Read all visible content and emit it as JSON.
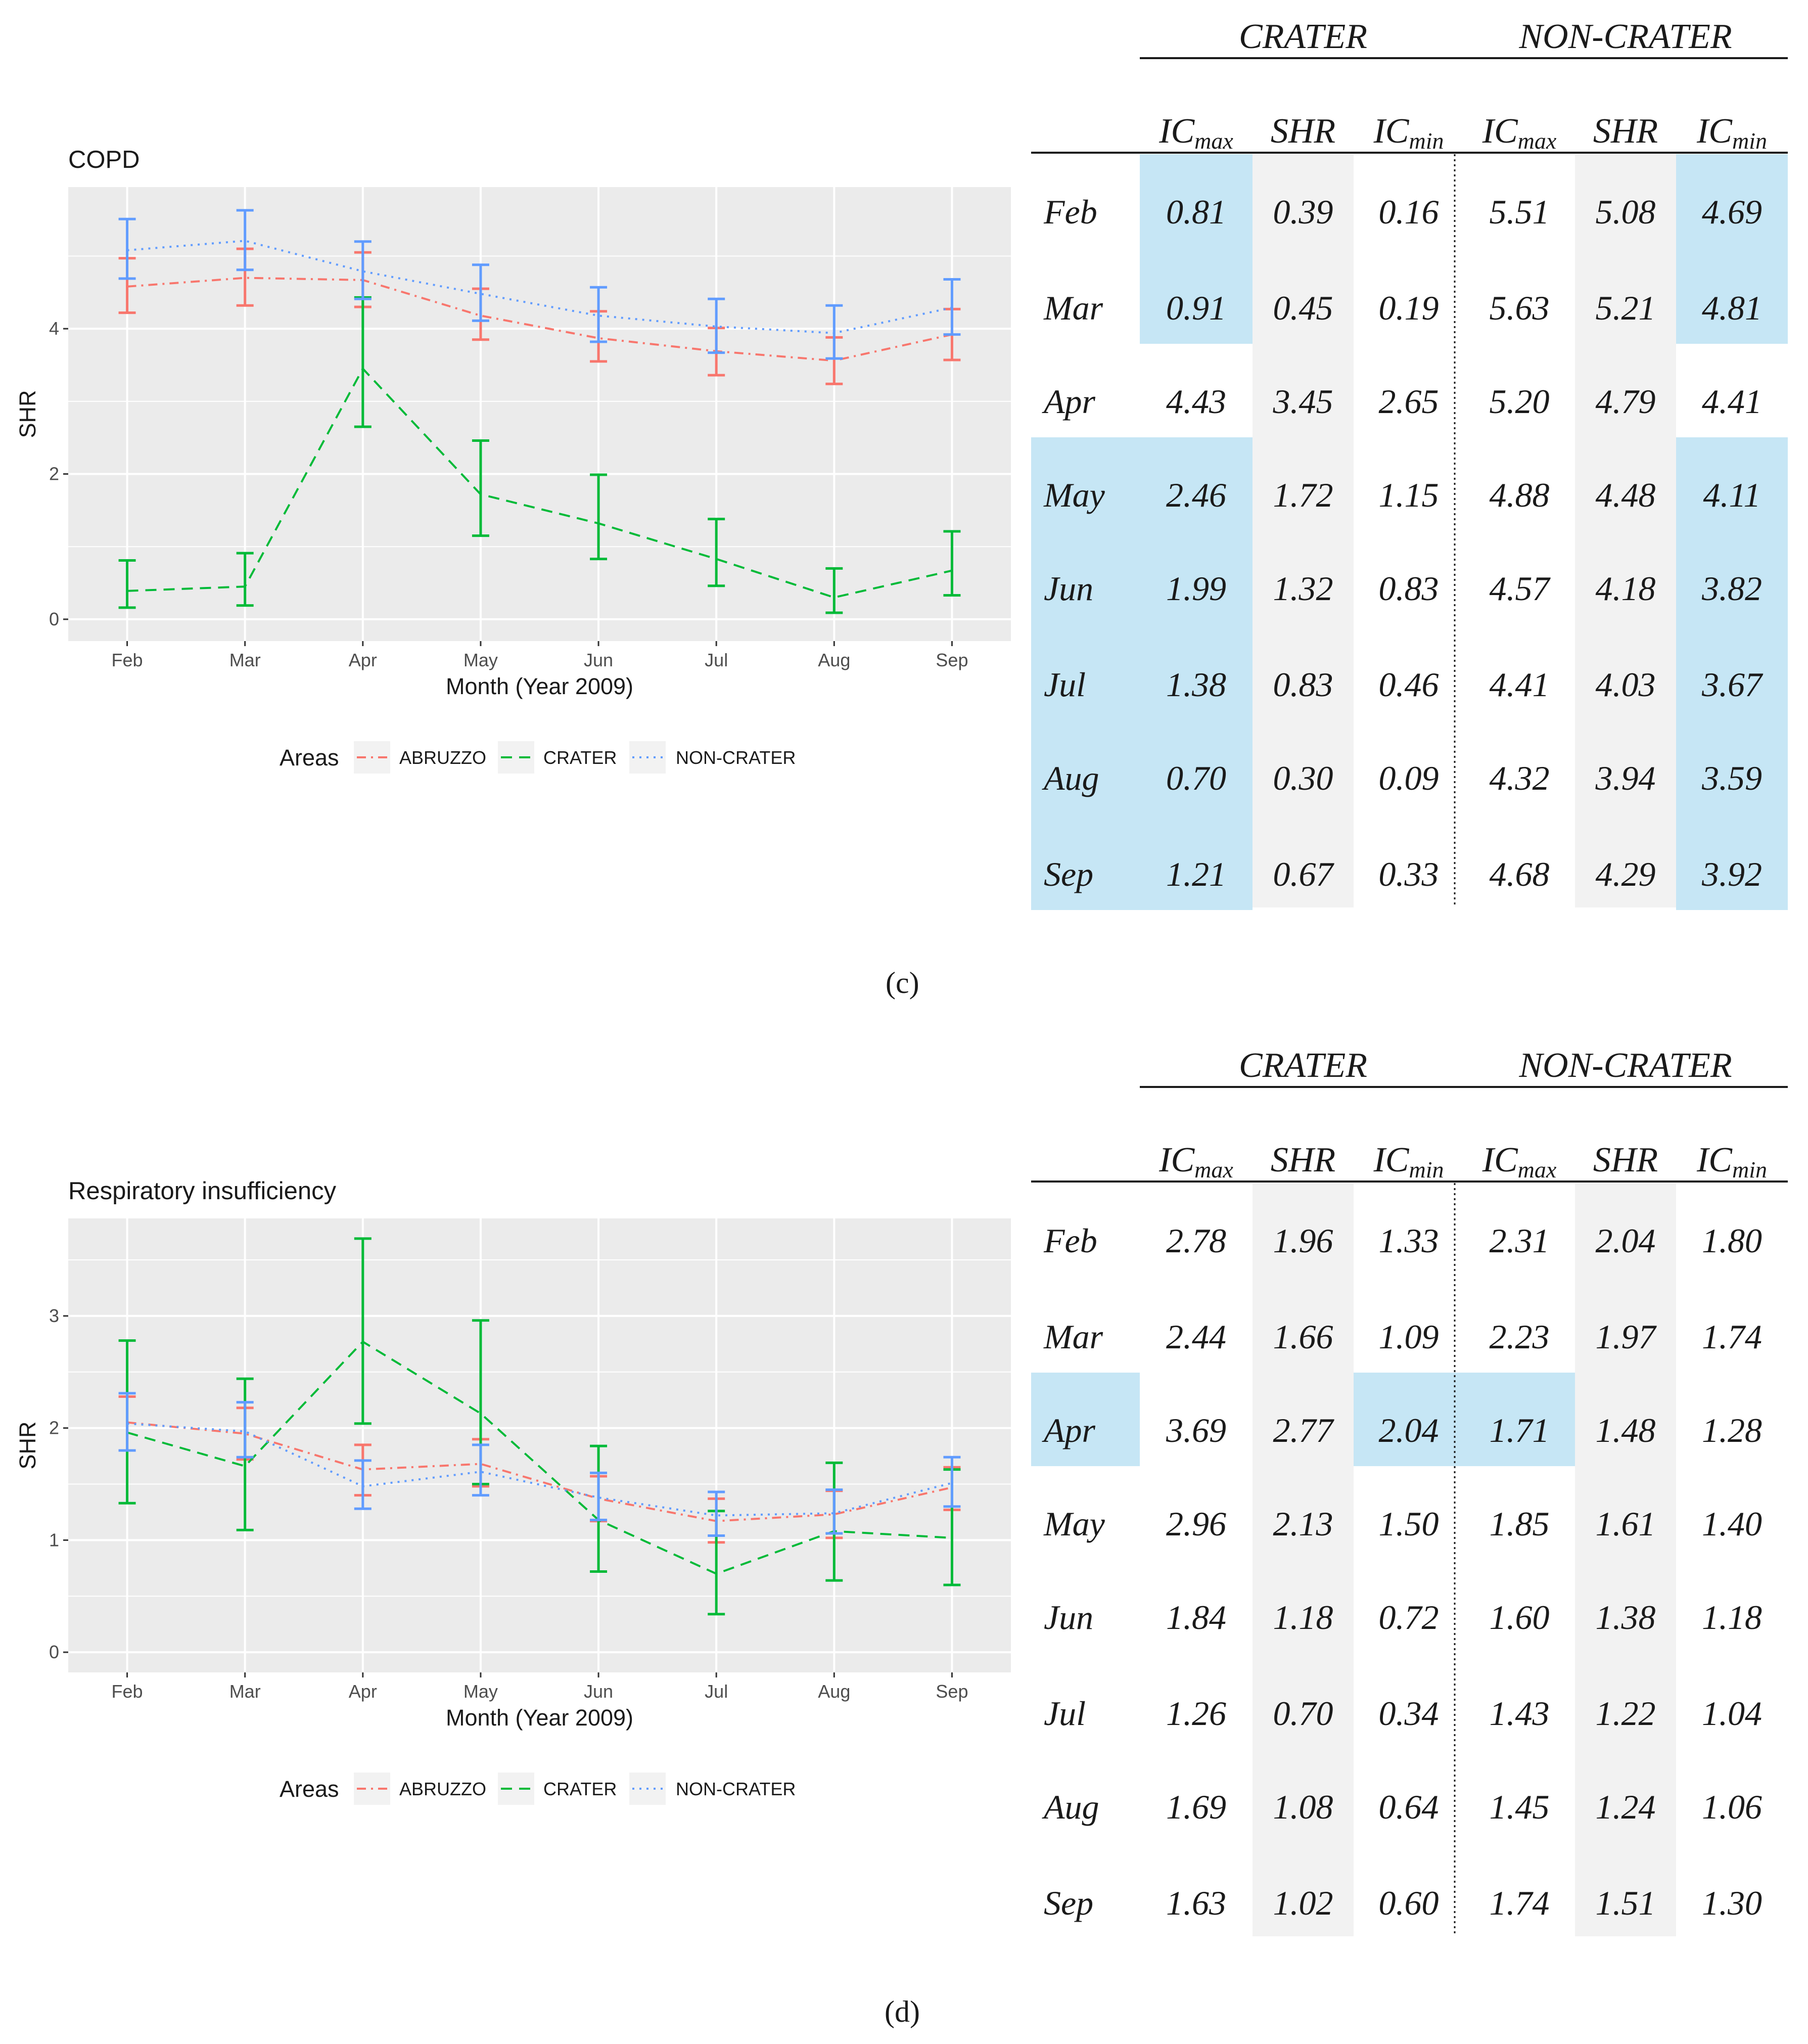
{
  "months": [
    "Feb",
    "Mar",
    "Apr",
    "May",
    "Jun",
    "Jul",
    "Aug",
    "Sep"
  ],
  "colors": {
    "abruzzo": "#f8766d",
    "crater": "#00ba38",
    "noncrater": "#619cff",
    "panel_bg": "#ebebeb",
    "grid": "#ffffff",
    "table_highlight": "#c6e6f5",
    "table_gray": "#f2f2f2"
  },
  "legend": {
    "title": "Areas",
    "items": [
      {
        "key": "abruzzo",
        "label": "ABRUZZO",
        "dash": "18,10,4,10"
      },
      {
        "key": "crater",
        "label": "CRATER",
        "dash": "22,14"
      },
      {
        "key": "noncrater",
        "label": "NON-CRATER",
        "dash": "4,10"
      }
    ]
  },
  "tables_header": {
    "crater": "CRATER",
    "noncrater": "NON-CRATER",
    "columns": [
      {
        "main": "IC",
        "sub": "max"
      },
      {
        "main": "SHR",
        "sub": ""
      },
      {
        "main": "IC",
        "sub": "min"
      },
      {
        "main": "IC",
        "sub": "max"
      },
      {
        "main": "SHR",
        "sub": ""
      },
      {
        "main": "IC",
        "sub": "min"
      }
    ]
  },
  "chart_data": [
    {
      "type": "line",
      "title": "COPD",
      "xlabel": "Month (Year 2009)",
      "ylabel": "SHR",
      "ylim": [
        -0.3,
        5.95
      ],
      "yticks": [
        0,
        2,
        4
      ],
      "categories": [
        "Feb",
        "Mar",
        "Apr",
        "May",
        "Jun",
        "Jul",
        "Aug",
        "Sep"
      ],
      "series": [
        {
          "name": "ABRUZZO",
          "key": "abruzzo",
          "values": [
            4.58,
            4.7,
            4.67,
            4.18,
            3.87,
            3.69,
            3.56,
            3.92
          ],
          "upper": [
            4.97,
            5.1,
            5.05,
            4.55,
            4.24,
            4.01,
            3.88,
            4.27
          ],
          "lower": [
            4.22,
            4.32,
            4.3,
            3.85,
            3.55,
            3.36,
            3.24,
            3.57
          ]
        },
        {
          "name": "CRATER",
          "key": "crater",
          "values": [
            0.39,
            0.45,
            3.45,
            1.72,
            1.32,
            0.83,
            0.3,
            0.67
          ],
          "upper": [
            0.81,
            0.91,
            4.43,
            2.46,
            1.99,
            1.38,
            0.7,
            1.21
          ],
          "lower": [
            0.16,
            0.19,
            2.65,
            1.15,
            0.83,
            0.46,
            0.09,
            0.33
          ]
        },
        {
          "name": "NON-CRATER",
          "key": "noncrater",
          "values": [
            5.08,
            5.21,
            4.79,
            4.48,
            4.18,
            4.03,
            3.94,
            4.29
          ],
          "upper": [
            5.51,
            5.63,
            5.2,
            4.88,
            4.57,
            4.41,
            4.32,
            4.68
          ],
          "lower": [
            4.69,
            4.81,
            4.41,
            4.11,
            3.82,
            3.67,
            3.59,
            3.92
          ]
        }
      ]
    },
    {
      "type": "line",
      "title": "Respiratory insufficiency",
      "xlabel": "Month (Year 2009)",
      "ylabel": "SHR",
      "ylim": [
        -0.18,
        3.87
      ],
      "yticks": [
        0,
        1,
        2,
        3
      ],
      "categories": [
        "Feb",
        "Mar",
        "Apr",
        "May",
        "Jun",
        "Jul",
        "Aug",
        "Sep"
      ],
      "series": [
        {
          "name": "ABRUZZO",
          "key": "abruzzo",
          "values": [
            2.05,
            1.95,
            1.63,
            1.68,
            1.37,
            1.17,
            1.23,
            1.47
          ],
          "upper": [
            2.28,
            2.18,
            1.85,
            1.9,
            1.57,
            1.37,
            1.44,
            1.65
          ],
          "lower": [
            1.8,
            1.72,
            1.4,
            1.48,
            1.17,
            0.98,
            1.02,
            1.27
          ]
        },
        {
          "name": "CRATER",
          "key": "crater",
          "values": [
            1.96,
            1.66,
            2.77,
            2.13,
            1.18,
            0.7,
            1.08,
            1.02
          ],
          "upper": [
            2.78,
            2.44,
            3.69,
            2.96,
            1.84,
            1.26,
            1.69,
            1.63
          ],
          "lower": [
            1.33,
            1.09,
            2.04,
            1.5,
            0.72,
            0.34,
            0.64,
            0.6
          ]
        },
        {
          "name": "NON-CRATER",
          "key": "noncrater",
          "values": [
            2.04,
            1.97,
            1.48,
            1.61,
            1.38,
            1.22,
            1.24,
            1.51
          ],
          "upper": [
            2.31,
            2.23,
            1.71,
            1.85,
            1.6,
            1.43,
            1.45,
            1.74
          ],
          "lower": [
            1.8,
            1.74,
            1.28,
            1.4,
            1.18,
            1.04,
            1.06,
            1.3
          ]
        }
      ]
    },
    {
      "type": "table",
      "caption": "(c)",
      "rows": [
        {
          "month": "Feb",
          "values": [
            "0.81",
            "0.39",
            "0.16",
            "5.51",
            "5.08",
            "4.69"
          ]
        },
        {
          "month": "Mar",
          "values": [
            "0.91",
            "0.45",
            "0.19",
            "5.63",
            "5.21",
            "4.81"
          ]
        },
        {
          "month": "Apr",
          "values": [
            "4.43",
            "3.45",
            "2.65",
            "5.20",
            "4.79",
            "4.41"
          ]
        },
        {
          "month": "May",
          "values": [
            "2.46",
            "1.72",
            "1.15",
            "4.88",
            "4.48",
            "4.11"
          ]
        },
        {
          "month": "Jun",
          "values": [
            "1.99",
            "1.32",
            "0.83",
            "4.57",
            "4.18",
            "3.82"
          ]
        },
        {
          "month": "Jul",
          "values": [
            "1.38",
            "0.83",
            "0.46",
            "4.41",
            "4.03",
            "3.67"
          ]
        },
        {
          "month": "Aug",
          "values": [
            "0.70",
            "0.30",
            "0.09",
            "4.32",
            "3.94",
            "3.59"
          ]
        },
        {
          "month": "Sep",
          "values": [
            "1.21",
            "0.67",
            "0.33",
            "4.68",
            "4.29",
            "3.92"
          ]
        }
      ],
      "highlight": [
        [
          0,
          1
        ],
        [
          0,
          6
        ],
        [
          1,
          1
        ],
        [
          1,
          6
        ],
        [
          3,
          0
        ],
        [
          3,
          1
        ],
        [
          3,
          6
        ],
        [
          4,
          0
        ],
        [
          4,
          1
        ],
        [
          4,
          6
        ],
        [
          5,
          0
        ],
        [
          5,
          1
        ],
        [
          5,
          6
        ],
        [
          6,
          0
        ],
        [
          6,
          1
        ],
        [
          6,
          6
        ],
        [
          7,
          0
        ],
        [
          7,
          1
        ],
        [
          7,
          6
        ]
      ]
    },
    {
      "type": "table",
      "caption": "(d)",
      "rows": [
        {
          "month": "Feb",
          "values": [
            "2.78",
            "1.96",
            "1.33",
            "2.31",
            "2.04",
            "1.80"
          ]
        },
        {
          "month": "Mar",
          "values": [
            "2.44",
            "1.66",
            "1.09",
            "2.23",
            "1.97",
            "1.74"
          ]
        },
        {
          "month": "Apr",
          "values": [
            "3.69",
            "2.77",
            "2.04",
            "1.71",
            "1.48",
            "1.28"
          ]
        },
        {
          "month": "May",
          "values": [
            "2.96",
            "2.13",
            "1.50",
            "1.85",
            "1.61",
            "1.40"
          ]
        },
        {
          "month": "Jun",
          "values": [
            "1.84",
            "1.18",
            "0.72",
            "1.60",
            "1.38",
            "1.18"
          ]
        },
        {
          "month": "Jul",
          "values": [
            "1.26",
            "0.70",
            "0.34",
            "1.43",
            "1.22",
            "1.04"
          ]
        },
        {
          "month": "Aug",
          "values": [
            "1.69",
            "1.08",
            "0.64",
            "1.45",
            "1.24",
            "1.06"
          ]
        },
        {
          "month": "Sep",
          "values": [
            "1.63",
            "1.02",
            "0.60",
            "1.74",
            "1.51",
            "1.30"
          ]
        }
      ],
      "highlight": [
        [
          2,
          0
        ],
        [
          2,
          3
        ],
        [
          2,
          4
        ]
      ]
    }
  ]
}
